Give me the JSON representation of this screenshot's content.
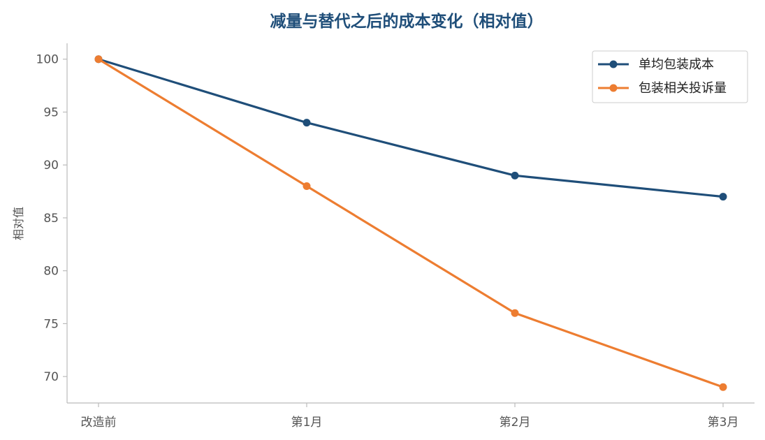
{
  "chart_data": {
    "type": "line",
    "title": "减量与替代之后的成本变化（相对值）",
    "xlabel": "",
    "ylabel": "相对值",
    "categories": [
      "改造前",
      "第1月",
      "第2月",
      "第3月"
    ],
    "yticks": [
      70,
      75,
      80,
      85,
      90,
      95,
      100
    ],
    "ylim": [
      67.5,
      101.5
    ],
    "grid": false,
    "legend_position": "top-right",
    "series": [
      {
        "name": "单均包装成本",
        "values": [
          100,
          94,
          89,
          87
        ],
        "color": "#1f4e79"
      },
      {
        "name": "包装相关投诉量",
        "values": [
          100,
          88,
          76,
          69
        ],
        "color": "#ed7d31"
      }
    ]
  }
}
